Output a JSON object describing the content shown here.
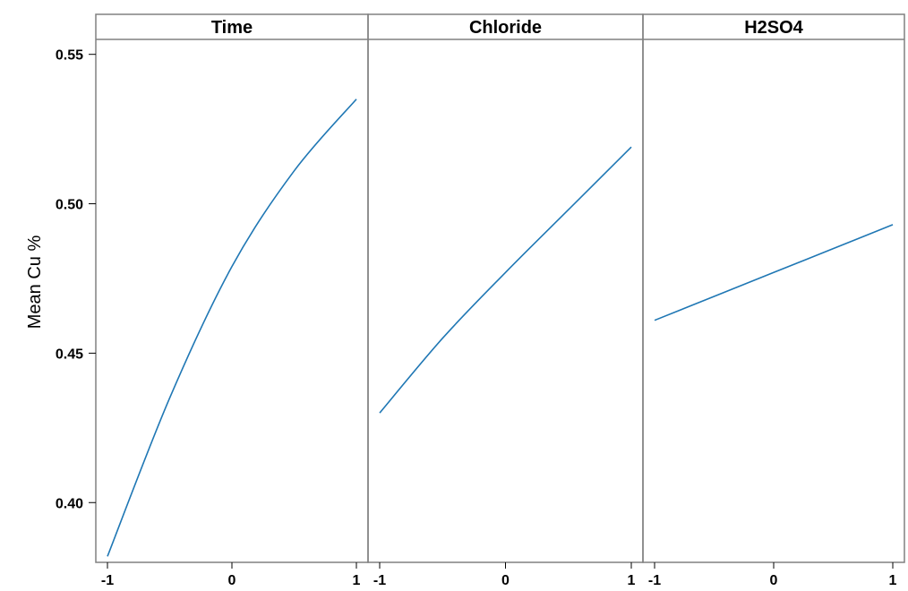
{
  "chart_data": {
    "type": "line",
    "ylabel": "Mean Cu %",
    "xlabel": "",
    "ylim": [
      0.38,
      0.555
    ],
    "yticks": [
      "0.40",
      "0.45",
      "0.50",
      "0.55"
    ],
    "xticks": [
      "-1",
      "0",
      "1"
    ],
    "line_color": "#1f77b4",
    "panels": [
      {
        "title": "Time",
        "x": [
          -1,
          -0.5,
          0,
          0.5,
          1
        ],
        "y": [
          0.382,
          0.435,
          0.479,
          0.511,
          0.535
        ]
      },
      {
        "title": "Chloride",
        "x": [
          -1,
          -0.5,
          0,
          0.5,
          1
        ],
        "y": [
          0.43,
          0.455,
          0.477,
          0.498,
          0.519
        ]
      },
      {
        "title": "H2SO4",
        "x": [
          -1,
          -0.5,
          0,
          0.5,
          1
        ],
        "y": [
          0.461,
          0.469,
          0.477,
          0.485,
          0.493
        ]
      }
    ]
  }
}
